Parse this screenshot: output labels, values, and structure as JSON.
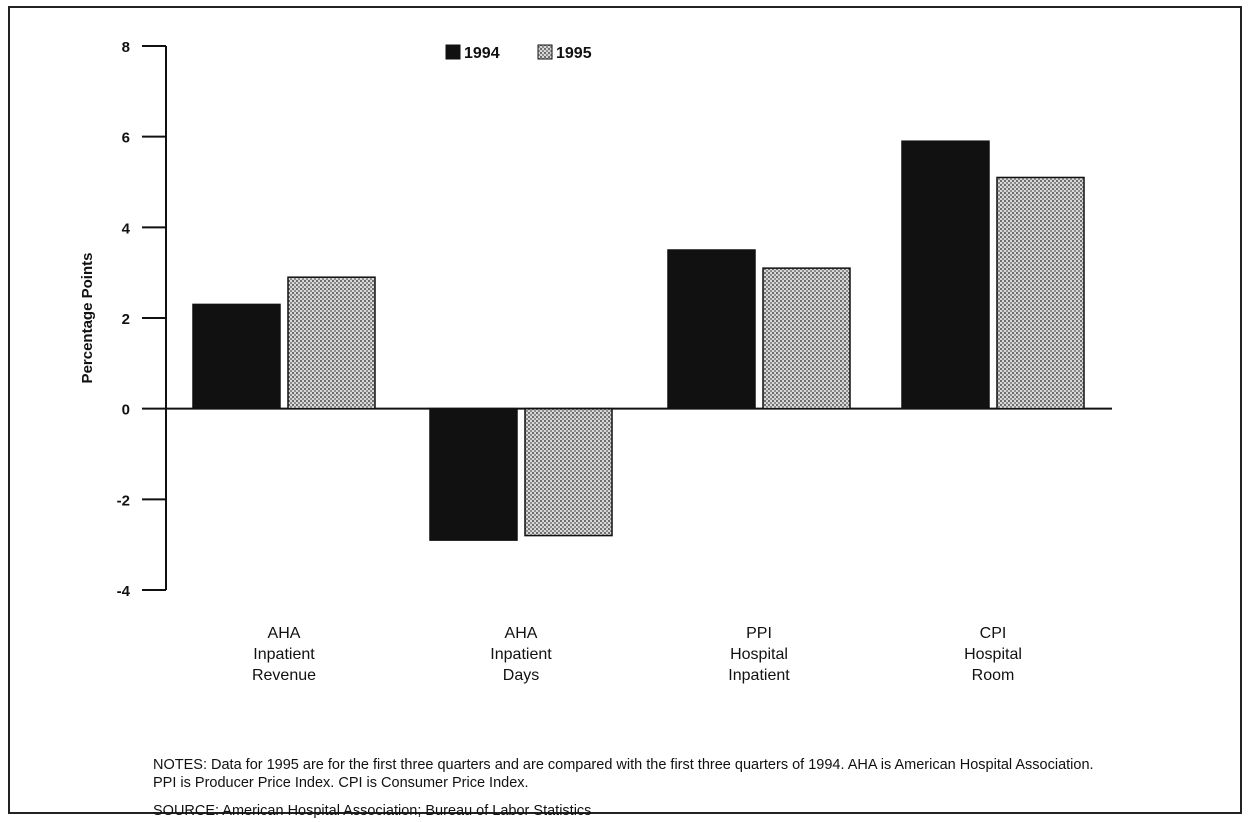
{
  "chart_data": {
    "type": "bar",
    "title": "",
    "xlabel": "",
    "ylabel": "Percentage Points",
    "ylim": [
      -4,
      8
    ],
    "yticks": [
      8,
      6,
      4,
      2,
      0,
      -2,
      -4
    ],
    "categories": [
      [
        "AHA",
        "Inpatient",
        "Revenue"
      ],
      [
        "AHA",
        "Inpatient",
        "Days"
      ],
      [
        "PPI",
        "Hospital",
        "Inpatient"
      ],
      [
        "CPI",
        "Hospital",
        "Room"
      ]
    ],
    "series": [
      {
        "name": "1994",
        "values": [
          2.3,
          -2.9,
          3.5,
          5.9
        ],
        "color": "#111111",
        "pattern": "solid"
      },
      {
        "name": "1995",
        "values": [
          2.9,
          -2.8,
          3.1,
          5.1
        ],
        "color": "#b8b8b8",
        "pattern": "dotted-gray"
      }
    ],
    "legend_position": "top-center",
    "grid": false
  },
  "notes": "NOTES: Data for 1995 are for the first three quarters and are compared with the first three quarters of 1994. AHA is American Hospital Association. PPI is Producer Price Index. CPI is Consumer Price Index.",
  "source": "SOURCE: American Hospital Association; Bureau of Labor Statistics"
}
